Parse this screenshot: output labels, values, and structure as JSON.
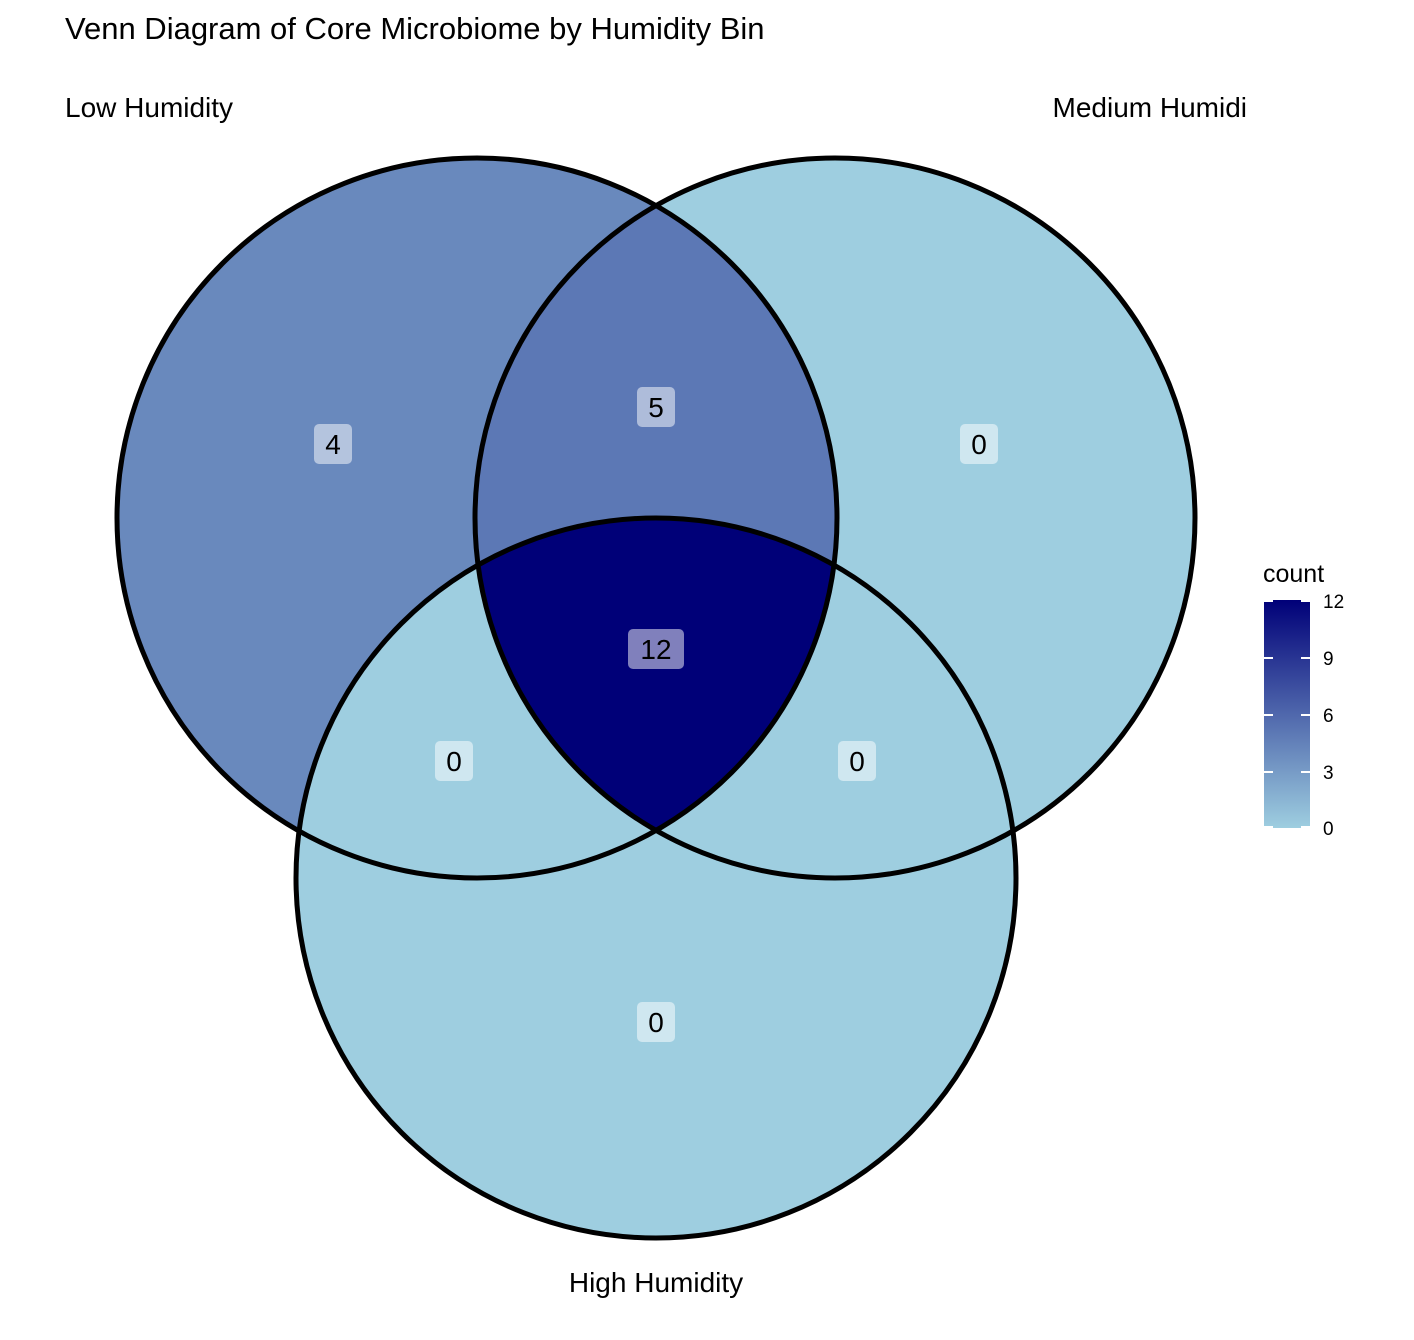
{
  "title": "Venn Diagram of Core Microbiome by Humidity Bin",
  "sets": [
    {
      "key": "low",
      "label": "Low Humidity"
    },
    {
      "key": "medium",
      "label": "Medium Humidi"
    },
    {
      "key": "high",
      "label": "High Humidity"
    }
  ],
  "regions": [
    {
      "id": "low_only",
      "sets": [
        "low"
      ],
      "count": 4
    },
    {
      "id": "medium_only",
      "sets": [
        "medium"
      ],
      "count": 0
    },
    {
      "id": "high_only",
      "sets": [
        "high"
      ],
      "count": 0
    },
    {
      "id": "low_medium",
      "sets": [
        "low",
        "medium"
      ],
      "count": 5
    },
    {
      "id": "low_high",
      "sets": [
        "low",
        "high"
      ],
      "count": 0
    },
    {
      "id": "medium_high",
      "sets": [
        "medium",
        "high"
      ],
      "count": 0
    },
    {
      "id": "all",
      "sets": [
        "low",
        "medium",
        "high"
      ],
      "count": 12
    }
  ],
  "legend": {
    "title": "count",
    "ticks": [
      "12",
      "9",
      "6",
      "3",
      "0"
    ],
    "min": 0,
    "max": 12,
    "color_low": "#9ecee0",
    "color_high": "#000078"
  }
}
